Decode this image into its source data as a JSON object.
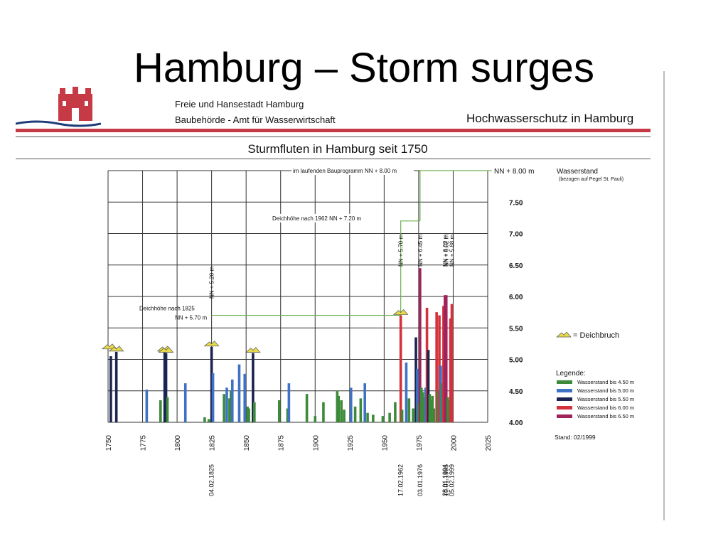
{
  "slide": {
    "title": "Hamburg – Storm surges"
  },
  "header": {
    "line1": "Freie und Hansestadt Hamburg",
    "line2": "Baubehörde - Amt für Wasserwirtschaft",
    "right_title": "Hochwasserschutz in Hamburg"
  },
  "colors": {
    "bis450": "#3c8a3a",
    "bis500": "#3f72c4",
    "bis550": "#1b2450",
    "bis600": "#d3313c",
    "bis650": "#a0245c",
    "dike_line": "#6fb04f",
    "grid": "#333333"
  },
  "chart_data": {
    "type": "bar",
    "title": "Sturmfluten in Hamburg seit 1750",
    "ylabel": "Wasserstand",
    "ylabel_note": "(bezogen auf Pegel St. Pauli)",
    "xlim": [
      1750,
      2025
    ],
    "ylim": [
      4.0,
      8.0
    ],
    "grid": true,
    "x_ticks": [
      "1750",
      "1775",
      "1800",
      "1825",
      "1850",
      "1875",
      "1900",
      "1925",
      "1950",
      "1975",
      "2000",
      "2025"
    ],
    "y_ticks": [
      "NN + 8.00 m",
      "7.50",
      "7.00",
      "6.50",
      "6.00",
      "5.50",
      "5.00",
      "4.50",
      "4.00"
    ],
    "legend_title": "Legende:",
    "legend_position": "right",
    "legend": [
      {
        "label": "Wasserstand bis 4.50 m",
        "color": "#3c8a3a"
      },
      {
        "label": "Wasserstand bis 5.00 m",
        "color": "#3f72c4"
      },
      {
        "label": "Wasserstand bis 5.50 m",
        "color": "#1b2450"
      },
      {
        "label": "Wasserstand bis 6.00 m",
        "color": "#d3313c"
      },
      {
        "label": "Wasserstand bis 6.50 m",
        "color": "#a0245c"
      }
    ],
    "breach_legend": "= Deichbruch",
    "stand": "Stand: 02/1999",
    "dike_heights": [
      {
        "label": "Deichhöhe nach 1825",
        "label2": "NN + 5.70 m",
        "from": 1825,
        "to": 1962,
        "level": 5.7
      },
      {
        "label": "Deichhöhe nach 1962",
        "label2": "NN + 7.20 m",
        "from": 1962,
        "to": 1976,
        "level": 7.2
      },
      {
        "label": "im laufenden Bauprogramm",
        "label2": "NN + 8.00 m",
        "from": 1976,
        "to": 2028,
        "level": 8.0
      }
    ],
    "peak_labels": [
      {
        "year": 1825,
        "text": "NN + 5.20 m"
      },
      {
        "year": 1962,
        "text": "NN + 5.70 m"
      },
      {
        "year": 1976,
        "text": "NN + 6.45 m"
      },
      {
        "year": 1994,
        "text": "NN + 6.02 m"
      },
      {
        "year": 1995,
        "text": "NN + 6.02 m"
      },
      {
        "year": 1999,
        "text": "NN + 5.88 m"
      }
    ],
    "date_labels": [
      {
        "year": 1825,
        "text": "04.02.1825"
      },
      {
        "year": 1962,
        "text": "17.02.1962"
      },
      {
        "year": 1976,
        "text": "03.01.1976"
      },
      {
        "year": 1994,
        "text": "28.01.1994"
      },
      {
        "year": 1995,
        "text": "10.01.1995"
      },
      {
        "year": 1999,
        "text": "05.02.1999"
      }
    ],
    "breaches": [
      1751,
      1756,
      1791,
      1792,
      1825,
      1855,
      1962
    ],
    "bars": [
      {
        "x": 1752,
        "y": 5.05,
        "c": "bis550"
      },
      {
        "x": 1756,
        "y": 5.12,
        "c": "bis550"
      },
      {
        "x": 1778,
        "y": 4.52,
        "c": "bis500"
      },
      {
        "x": 1788,
        "y": 4.35,
        "c": "bis450"
      },
      {
        "x": 1791,
        "y": 5.12,
        "c": "bis550"
      },
      {
        "x": 1792,
        "y": 5.1,
        "c": "bis550"
      },
      {
        "x": 1793,
        "y": 4.4,
        "c": "bis450"
      },
      {
        "x": 1806,
        "y": 4.62,
        "c": "bis500"
      },
      {
        "x": 1820,
        "y": 4.08,
        "c": "bis450"
      },
      {
        "x": 1823,
        "y": 4.05,
        "c": "bis450"
      },
      {
        "x": 1825,
        "y": 5.2,
        "c": "bis550"
      },
      {
        "x": 1826,
        "y": 4.78,
        "c": "bis500"
      },
      {
        "x": 1834,
        "y": 4.45,
        "c": "bis450"
      },
      {
        "x": 1836,
        "y": 4.55,
        "c": "bis500"
      },
      {
        "x": 1838,
        "y": 4.38,
        "c": "bis450"
      },
      {
        "x": 1839,
        "y": 4.5,
        "c": "bis450"
      },
      {
        "x": 1840,
        "y": 4.68,
        "c": "bis500"
      },
      {
        "x": 1845,
        "y": 4.92,
        "c": "bis500"
      },
      {
        "x": 1849,
        "y": 4.77,
        "c": "bis500"
      },
      {
        "x": 1851,
        "y": 4.25,
        "c": "bis450"
      },
      {
        "x": 1852,
        "y": 4.22,
        "c": "bis450"
      },
      {
        "x": 1855,
        "y": 5.1,
        "c": "bis550"
      },
      {
        "x": 1856,
        "y": 4.32,
        "c": "bis450"
      },
      {
        "x": 1874,
        "y": 4.35,
        "c": "bis450"
      },
      {
        "x": 1880,
        "y": 4.22,
        "c": "bis450"
      },
      {
        "x": 1881,
        "y": 4.62,
        "c": "bis500"
      },
      {
        "x": 1894,
        "y": 4.45,
        "c": "bis450"
      },
      {
        "x": 1900,
        "y": 4.1,
        "c": "bis450"
      },
      {
        "x": 1906,
        "y": 4.32,
        "c": "bis450"
      },
      {
        "x": 1916,
        "y": 4.5,
        "c": "bis450"
      },
      {
        "x": 1917,
        "y": 4.42,
        "c": "bis450"
      },
      {
        "x": 1919,
        "y": 4.35,
        "c": "bis450"
      },
      {
        "x": 1921,
        "y": 4.2,
        "c": "bis450"
      },
      {
        "x": 1926,
        "y": 4.55,
        "c": "bis500"
      },
      {
        "x": 1929,
        "y": 4.25,
        "c": "bis450"
      },
      {
        "x": 1933,
        "y": 4.38,
        "c": "bis450"
      },
      {
        "x": 1936,
        "y": 4.62,
        "c": "bis500"
      },
      {
        "x": 1938,
        "y": 4.15,
        "c": "bis450"
      },
      {
        "x": 1942,
        "y": 4.12,
        "c": "bis450"
      },
      {
        "x": 1949,
        "y": 4.1,
        "c": "bis450"
      },
      {
        "x": 1954,
        "y": 4.15,
        "c": "bis450"
      },
      {
        "x": 1958,
        "y": 4.32,
        "c": "bis450"
      },
      {
        "x": 1962,
        "y": 5.7,
        "c": "bis600"
      },
      {
        "x": 1963,
        "y": 4.2,
        "c": "bis450"
      },
      {
        "x": 1966,
        "y": 4.95,
        "c": "bis500"
      },
      {
        "x": 1968,
        "y": 4.38,
        "c": "bis450"
      },
      {
        "x": 1971,
        "y": 4.22,
        "c": "bis450"
      },
      {
        "x": 1973,
        "y": 5.35,
        "c": "bis550"
      },
      {
        "x": 1974,
        "y": 4.85,
        "c": "bis500"
      },
      {
        "x": 1975,
        "y": 4.3,
        "c": "bis450"
      },
      {
        "x": 1976,
        "y": 6.45,
        "c": "bis650"
      },
      {
        "x": 1977,
        "y": 4.55,
        "c": "bis450"
      },
      {
        "x": 1978,
        "y": 4.48,
        "c": "bis450"
      },
      {
        "x": 1979,
        "y": 4.4,
        "c": "bis450"
      },
      {
        "x": 1980,
        "y": 4.55,
        "c": "bis500"
      },
      {
        "x": 1981,
        "y": 5.82,
        "c": "bis600"
      },
      {
        "x": 1982,
        "y": 5.15,
        "c": "bis550"
      },
      {
        "x": 1983,
        "y": 4.45,
        "c": "bis450"
      },
      {
        "x": 1984,
        "y": 4.35,
        "c": "bis450"
      },
      {
        "x": 1985,
        "y": 4.42,
        "c": "bis450"
      },
      {
        "x": 1986,
        "y": 4.22,
        "c": "bis450"
      },
      {
        "x": 1988,
        "y": 5.75,
        "c": "bis600"
      },
      {
        "x": 1989,
        "y": 4.5,
        "c": "bis450"
      },
      {
        "x": 1990,
        "y": 5.7,
        "c": "bis600"
      },
      {
        "x": 1991,
        "y": 4.9,
        "c": "bis500"
      },
      {
        "x": 1992,
        "y": 4.62,
        "c": "bis450"
      },
      {
        "x": 1993,
        "y": 5.85,
        "c": "bis600"
      },
      {
        "x": 1994,
        "y": 6.02,
        "c": "bis650"
      },
      {
        "x": 1995,
        "y": 6.02,
        "c": "bis650"
      },
      {
        "x": 1996,
        "y": 4.4,
        "c": "bis450"
      },
      {
        "x": 1997,
        "y": 4.35,
        "c": "bis450"
      },
      {
        "x": 1998,
        "y": 5.65,
        "c": "bis600"
      },
      {
        "x": 1999,
        "y": 5.88,
        "c": "bis600"
      }
    ]
  }
}
